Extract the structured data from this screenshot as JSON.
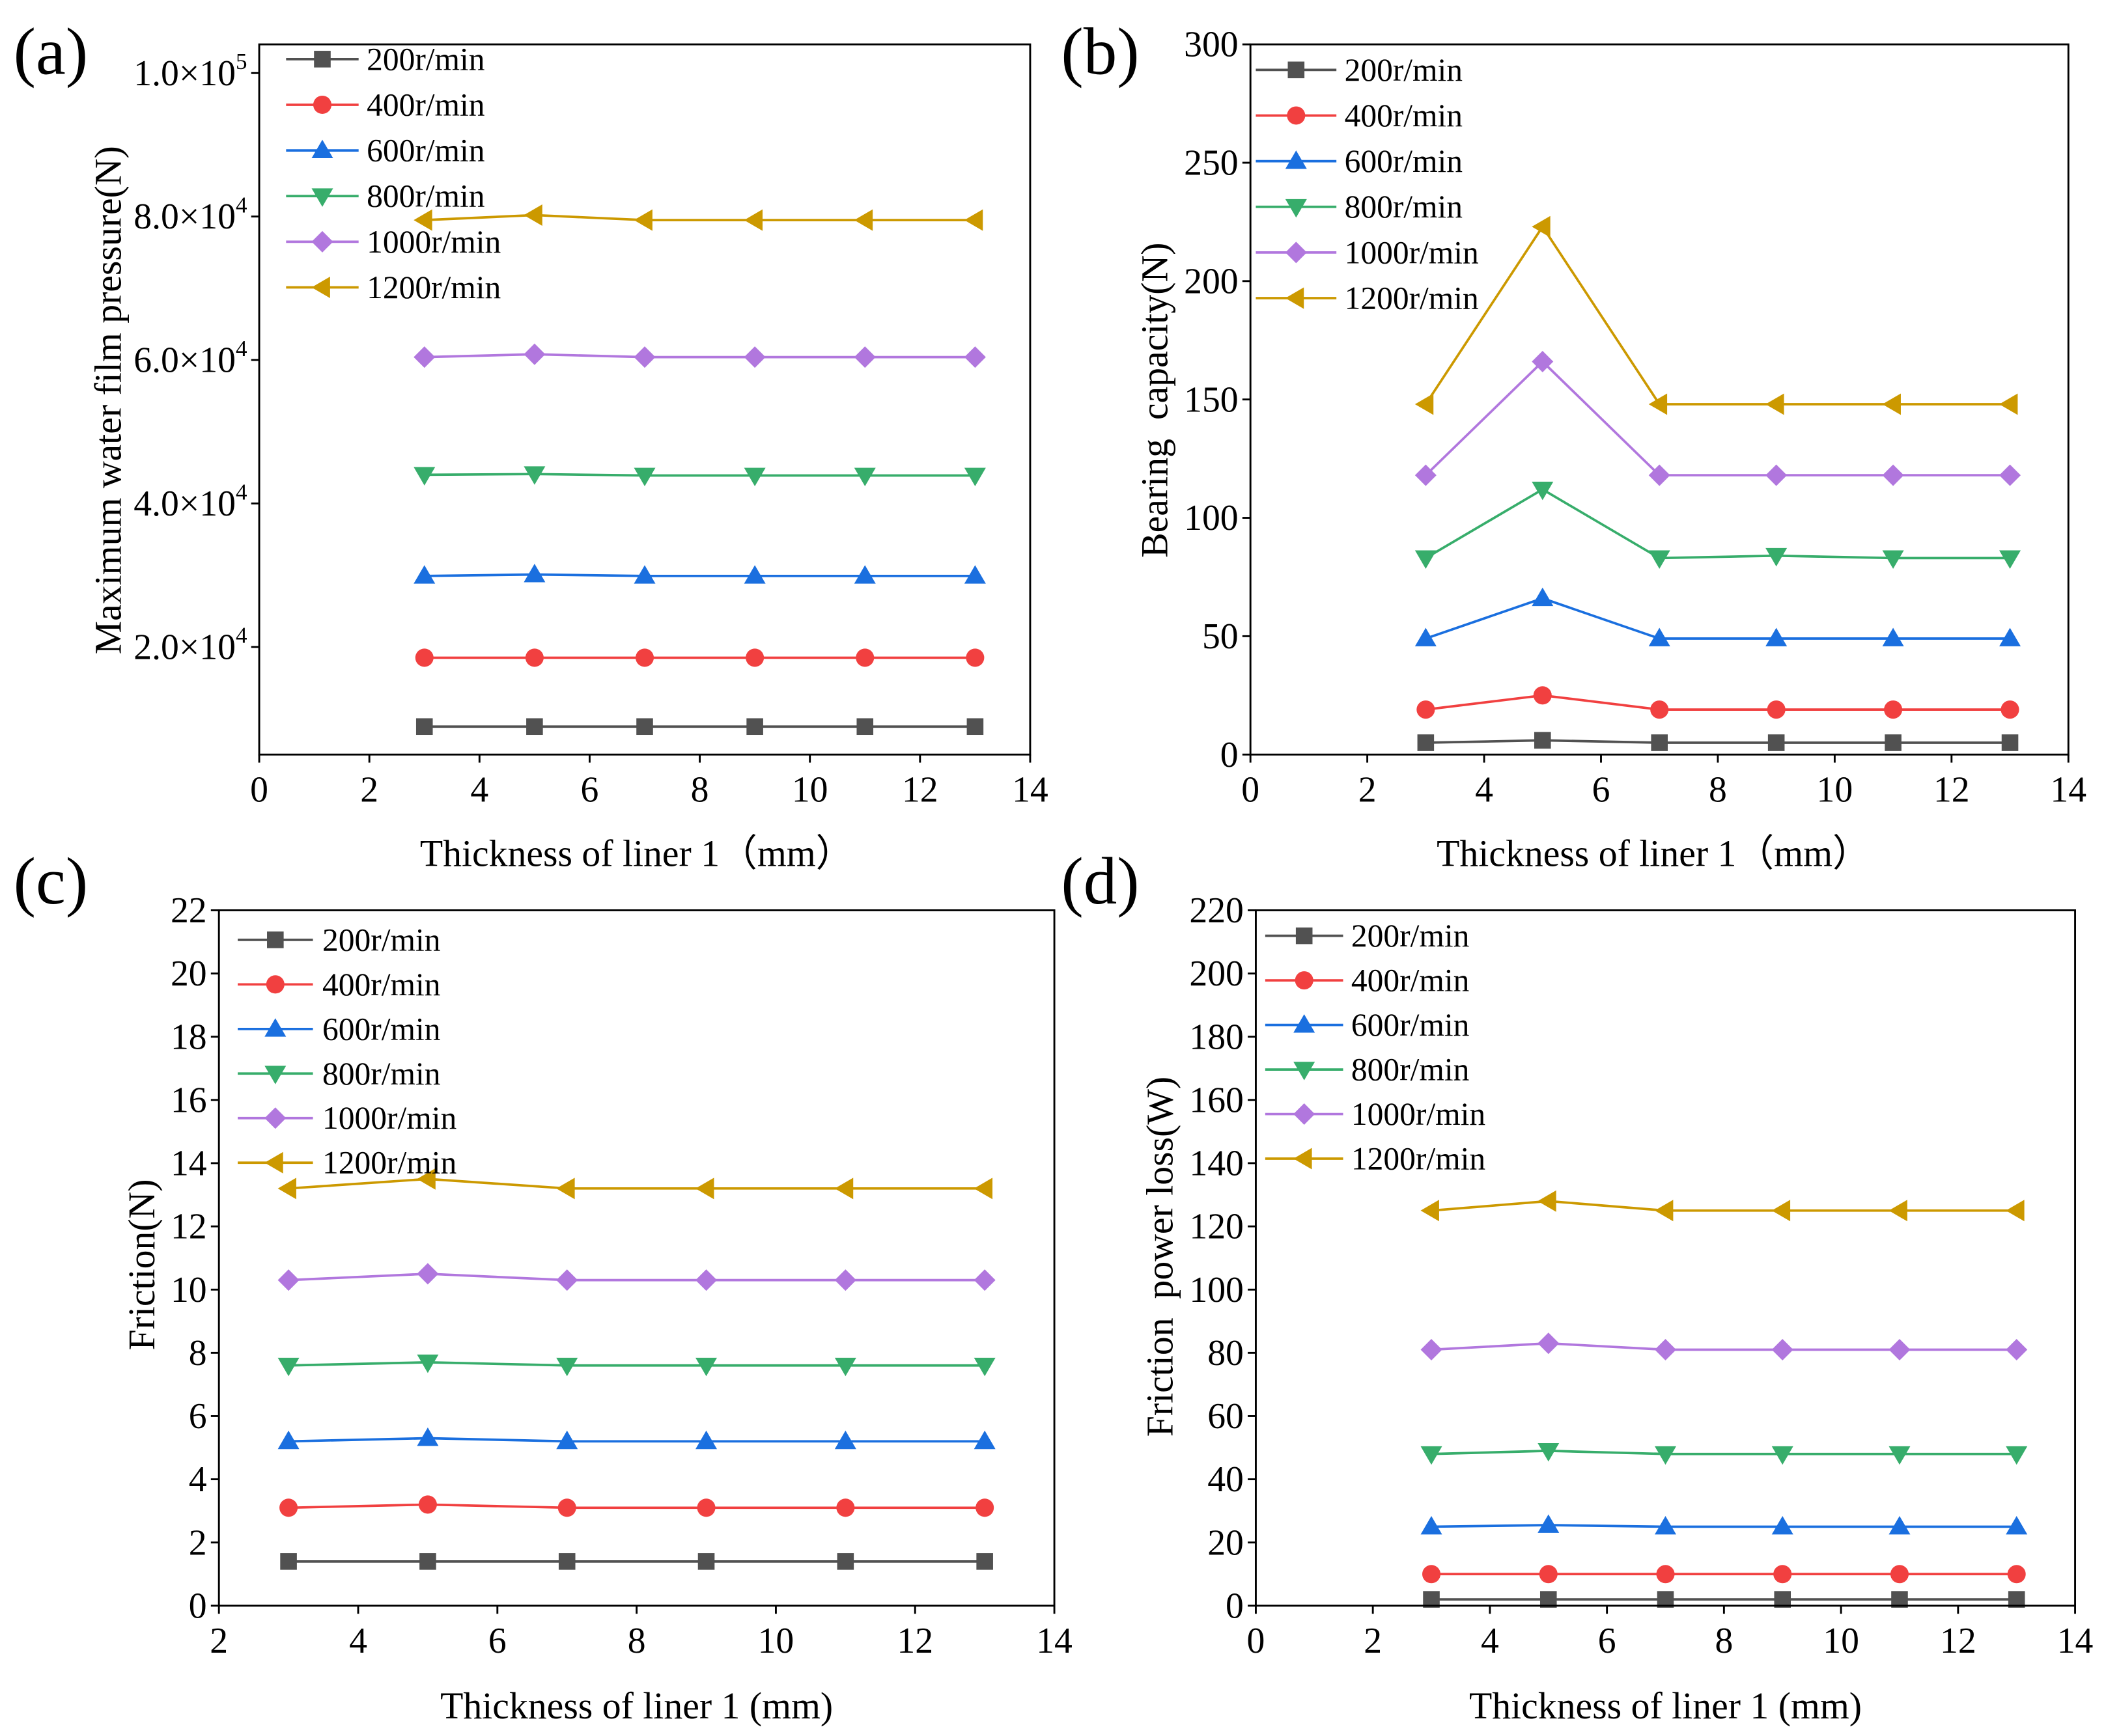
{
  "chart_data": [
    {
      "panel_label": "(a)",
      "type": "line",
      "xlabel": "Thickness of liner 1（mm）",
      "ylabel": "Maximum water film pressure(N)",
      "xlim": [
        0,
        14
      ],
      "ylim": [
        5000,
        104000
      ],
      "xticks": [
        0,
        2,
        4,
        6,
        8,
        10,
        12,
        14
      ],
      "yticks": [
        {
          "value": 100000,
          "label": "1.0×10",
          "exp": "5"
        },
        {
          "value": 80000,
          "label": "8.0×10",
          "exp": "4"
        },
        {
          "value": 60000,
          "label": "6.0×10",
          "exp": "4"
        },
        {
          "value": 40000,
          "label": "4.0×10",
          "exp": "4"
        },
        {
          "value": 20000,
          "label": "2.0×10",
          "exp": "4"
        }
      ],
      "legend": "top-left",
      "x": [
        3,
        5,
        7,
        9,
        11,
        13
      ],
      "series": [
        {
          "name": "200r/min",
          "color": "#515151",
          "marker": "square",
          "values": [
            8900,
            8900,
            8900,
            8900,
            8900,
            8900
          ]
        },
        {
          "name": "400r/min",
          "color": "#F14040",
          "marker": "circle",
          "values": [
            18500,
            18500,
            18500,
            18500,
            18500,
            18500
          ]
        },
        {
          "name": "600r/min",
          "color": "#1A6FDF",
          "marker": "triangle-up",
          "values": [
            29900,
            30100,
            29900,
            29900,
            29900,
            29900
          ]
        },
        {
          "name": "800r/min",
          "color": "#37AD6B",
          "marker": "triangle-down",
          "values": [
            44000,
            44100,
            43900,
            43900,
            43900,
            43900
          ]
        },
        {
          "name": "1000r/min",
          "color": "#B177DE",
          "marker": "diamond",
          "values": [
            60400,
            60800,
            60400,
            60400,
            60400,
            60400
          ]
        },
        {
          "name": "1200r/min",
          "color": "#CC9900",
          "marker": "triangle-left",
          "values": [
            79500,
            80200,
            79500,
            79500,
            79500,
            79500
          ]
        }
      ]
    },
    {
      "panel_label": "(b)",
      "type": "line",
      "xlabel": "Thickness of liner 1（mm）",
      "ylabel": "Bearing  capacity(N)",
      "xlim": [
        0,
        14
      ],
      "ylim": [
        0,
        300
      ],
      "xticks": [
        0,
        2,
        4,
        6,
        8,
        10,
        12,
        14
      ],
      "yticks": [
        0,
        50,
        100,
        150,
        200,
        250,
        300
      ],
      "legend": "top-left",
      "x": [
        3,
        5,
        7,
        9,
        11,
        13
      ],
      "series": [
        {
          "name": "200r/min",
          "color": "#515151",
          "marker": "square",
          "values": [
            5,
            6,
            5,
            5,
            5,
            5
          ]
        },
        {
          "name": "400r/min",
          "color": "#F14040",
          "marker": "circle",
          "values": [
            19,
            25,
            19,
            19,
            19,
            19
          ]
        },
        {
          "name": "600r/min",
          "color": "#1A6FDF",
          "marker": "triangle-up",
          "values": [
            49,
            66,
            49,
            49,
            49,
            49
          ]
        },
        {
          "name": "800r/min",
          "color": "#37AD6B",
          "marker": "triangle-down",
          "values": [
            83,
            112,
            83,
            84,
            83,
            83
          ]
        },
        {
          "name": "1000r/min",
          "color": "#B177DE",
          "marker": "diamond",
          "values": [
            118,
            166,
            118,
            118,
            118,
            118
          ]
        },
        {
          "name": "1200r/min",
          "color": "#CC9900",
          "marker": "triangle-left",
          "values": [
            148,
            223,
            148,
            148,
            148,
            148
          ]
        }
      ]
    },
    {
      "panel_label": "(c)",
      "type": "line",
      "xlabel": "Thickness of liner 1 (mm)",
      "ylabel": "Friction(N)",
      "xlim": [
        2,
        14
      ],
      "ylim": [
        0,
        22
      ],
      "xticks": [
        2,
        4,
        6,
        8,
        10,
        12,
        14
      ],
      "yticks": [
        0,
        2,
        4,
        6,
        8,
        10,
        12,
        14,
        16,
        18,
        20,
        22
      ],
      "legend": "top-left",
      "x": [
        3,
        5,
        7,
        9,
        11,
        13
      ],
      "series": [
        {
          "name": "200r/min",
          "color": "#515151",
          "marker": "square",
          "values": [
            1.4,
            1.4,
            1.4,
            1.4,
            1.4,
            1.4
          ]
        },
        {
          "name": "400r/min",
          "color": "#F14040",
          "marker": "circle",
          "values": [
            3.1,
            3.2,
            3.1,
            3.1,
            3.1,
            3.1
          ]
        },
        {
          "name": "600r/min",
          "color": "#1A6FDF",
          "marker": "triangle-up",
          "values": [
            5.2,
            5.3,
            5.2,
            5.2,
            5.2,
            5.2
          ]
        },
        {
          "name": "800r/min",
          "color": "#37AD6B",
          "marker": "triangle-down",
          "values": [
            7.6,
            7.7,
            7.6,
            7.6,
            7.6,
            7.6
          ]
        },
        {
          "name": "1000r/min",
          "color": "#B177DE",
          "marker": "diamond",
          "values": [
            10.3,
            10.5,
            10.3,
            10.3,
            10.3,
            10.3
          ]
        },
        {
          "name": "1200r/min",
          "color": "#CC9900",
          "marker": "triangle-left",
          "values": [
            13.2,
            13.5,
            13.2,
            13.2,
            13.2,
            13.2
          ]
        }
      ]
    },
    {
      "panel_label": "(d)",
      "type": "line",
      "xlabel": "Thickness of liner 1 (mm)",
      "ylabel": "Friction  power loss(W)",
      "xlim": [
        0,
        14
      ],
      "ylim": [
        0,
        220
      ],
      "xticks": [
        0,
        2,
        4,
        6,
        8,
        10,
        12,
        14
      ],
      "yticks": [
        0,
        20,
        40,
        60,
        80,
        100,
        120,
        140,
        160,
        180,
        200,
        220
      ],
      "legend": "top-left",
      "x": [
        3,
        5,
        7,
        9,
        11,
        13
      ],
      "series": [
        {
          "name": "200r/min",
          "color": "#515151",
          "marker": "square",
          "values": [
            2,
            2,
            2,
            2,
            2,
            2
          ]
        },
        {
          "name": "400r/min",
          "color": "#F14040",
          "marker": "circle",
          "values": [
            10,
            10,
            10,
            10,
            10,
            10
          ]
        },
        {
          "name": "600r/min",
          "color": "#1A6FDF",
          "marker": "triangle-up",
          "values": [
            25,
            25.5,
            25,
            25,
            25,
            25
          ]
        },
        {
          "name": "800r/min",
          "color": "#37AD6B",
          "marker": "triangle-down",
          "values": [
            48,
            49,
            48,
            48,
            48,
            48
          ]
        },
        {
          "name": "1000r/min",
          "color": "#B177DE",
          "marker": "diamond",
          "values": [
            81,
            83,
            81,
            81,
            81,
            81
          ]
        },
        {
          "name": "1200r/min",
          "color": "#CC9900",
          "marker": "triangle-left",
          "values": [
            125,
            128,
            125,
            125,
            125,
            125
          ]
        }
      ]
    }
  ]
}
